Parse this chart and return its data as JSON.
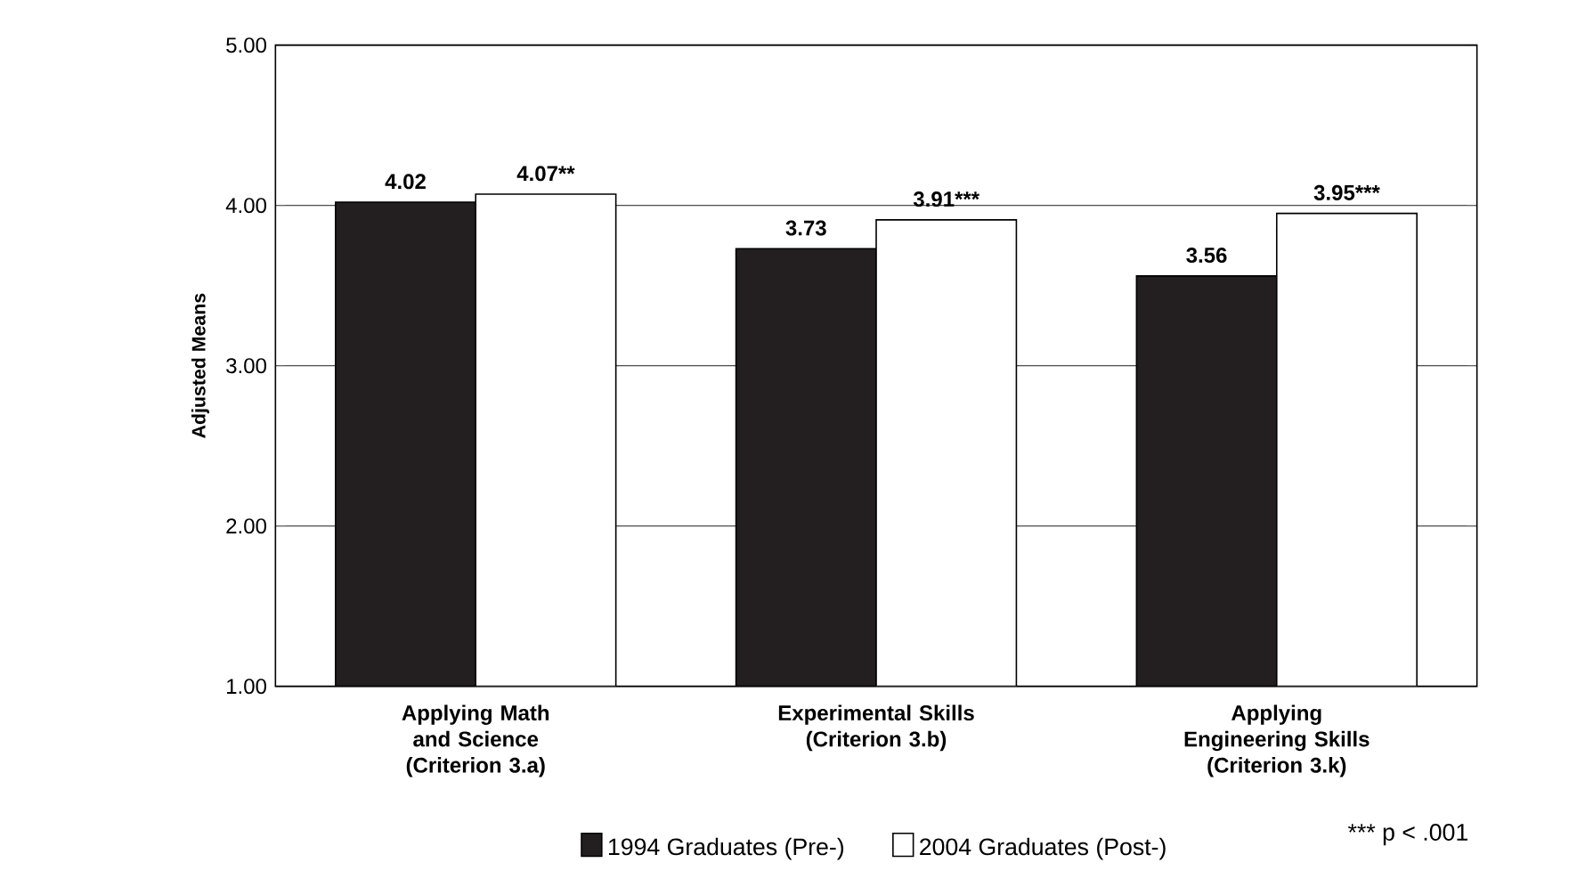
{
  "chart_data": {
    "type": "bar",
    "ylabel": "Adjusted Means",
    "categories": [
      "Applying Math and Science (Criterion 3.a)",
      "Experimental Skills (Criterion 3.b)",
      "Applying Engineering Skills (Criterion 3.k)"
    ],
    "series": [
      {
        "name": "1994 Graduates (Pre-)",
        "color": "#231f20",
        "values": [
          4.02,
          3.73,
          3.56
        ],
        "value_labels": [
          "4.02",
          "3.73",
          "3.56"
        ]
      },
      {
        "name": "2004 Graduates (Post-)",
        "color": "#ffffff",
        "values": [
          4.07,
          3.91,
          3.95
        ],
        "value_labels": [
          "4.07**",
          "3.91***",
          "3.95***"
        ]
      }
    ],
    "ylim": [
      1,
      5
    ],
    "yticks": [
      {
        "value": 1,
        "label": "1.00"
      },
      {
        "value": 2,
        "label": "2.00"
      },
      {
        "value": 3,
        "label": "3.00"
      },
      {
        "value": 4,
        "label": "4.00"
      },
      {
        "value": 5,
        "label": "5.00"
      }
    ],
    "grid": "y",
    "legend": "bottom",
    "annotations": [
      "*** p < .001"
    ]
  }
}
